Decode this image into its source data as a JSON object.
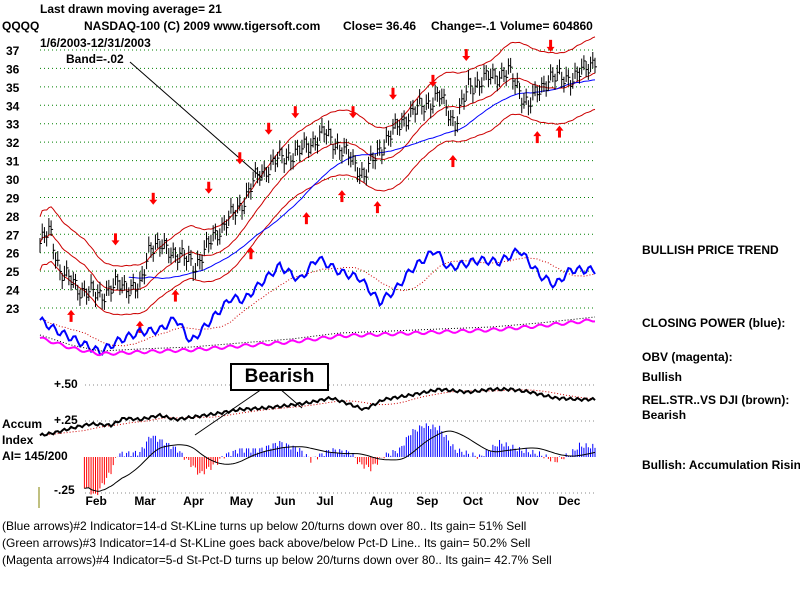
{
  "header": {
    "ma_line": "Last drawn moving average= 21",
    "symbol": "QQQQ",
    "title": "NASDAQ-100  (C) 2009 www.tigersoft.com",
    "close": "Close=  36.46",
    "change": "Change=-.1",
    "volume": "Volume= 604860",
    "date_range": "1/6/2003-12/31/2003",
    "band": "Band=-.02"
  },
  "right_labels": {
    "price_trend": "BULLISH PRICE TREND",
    "closing_power": "CLOSING POWER (blue):",
    "obv": "OBV (magenta):",
    "obv_status": "Bullish",
    "relstr": "REL.STR..VS DJI (brown):",
    "relstr_status": "Bearish",
    "accum": "Bullish: Accumulation Rising"
  },
  "accum_labels": {
    "p50": "+.50",
    "p25": "+.25",
    "m25": "-.25",
    "accum": "Accum",
    "index": "Index",
    "ai": "AI= 145/200"
  },
  "callout": "Bearish",
  "footer": [
    "(Blue arrows)#2 Indicator=14-d St-KLine turns up below 20/turns down over 80.. Its gain= 51% Sell",
    "(Green arrows)#3 Indicator=14-d St-KLine goes back above/below Pct-D Line.. Its gain= 50.2% Sell",
    "(Magenta arrows)#4 Indicator=5-d St-Pct-D turns up below 20/turns down over 80.. Its gain= 42.7% Sell"
  ],
  "chart_data": {
    "type": "line",
    "title": "NASDAQ-100 QQQQ 2003",
    "x_unit": "trading day",
    "x_range": [
      0,
      250
    ],
    "months": [
      {
        "label": "Feb",
        "day": 25
      },
      {
        "label": "Mar",
        "day": 47
      },
      {
        "label": "Apr",
        "day": 69
      },
      {
        "label": "May",
        "day": 90
      },
      {
        "label": "Jun",
        "day": 110
      },
      {
        "label": "Jul",
        "day": 129
      },
      {
        "label": "Aug",
        "day": 153
      },
      {
        "label": "Sep",
        "day": 174
      },
      {
        "label": "Oct",
        "day": 195
      },
      {
        "label": "Nov",
        "day": 219
      },
      {
        "label": "Dec",
        "day": 238
      }
    ],
    "price_axis": {
      "min": 23,
      "max": 37,
      "ticks": [
        23,
        24,
        25,
        26,
        27,
        28,
        29,
        30,
        31,
        32,
        33,
        34,
        35,
        36,
        37
      ]
    },
    "price_close": [
      [
        0,
        26.5
      ],
      [
        4.5,
        27.2
      ],
      [
        9,
        25
      ],
      [
        18,
        24
      ],
      [
        27,
        23.7
      ],
      [
        36,
        24.3
      ],
      [
        45,
        24
      ],
      [
        49.5,
        26.5
      ],
      [
        61,
        26
      ],
      [
        70,
        25.3
      ],
      [
        79,
        27
      ],
      [
        90,
        28.5
      ],
      [
        97,
        30
      ],
      [
        106,
        31
      ],
      [
        117,
        31.5
      ],
      [
        128,
        32.5
      ],
      [
        137,
        31.5
      ],
      [
        146,
        30.2
      ],
      [
        155,
        32
      ],
      [
        166,
        33.5
      ],
      [
        180,
        34.5
      ],
      [
        187,
        33
      ],
      [
        193,
        35
      ],
      [
        202,
        35.5
      ],
      [
        211,
        35.8
      ],
      [
        220,
        34
      ],
      [
        229,
        35.5
      ],
      [
        241,
        35.5
      ],
      [
        250,
        36.5
      ]
    ],
    "moving_average_days": 21,
    "sell_arrows": [
      [
        34,
        26.4
      ],
      [
        51,
        28.6
      ],
      [
        76,
        29.2
      ],
      [
        90,
        30.8
      ],
      [
        103,
        32.4
      ],
      [
        115,
        33.3
      ],
      [
        141,
        33.3
      ],
      [
        159,
        34.3
      ],
      [
        177,
        35.0
      ],
      [
        192,
        36.4
      ],
      [
        230,
        36.9
      ]
    ],
    "buy_arrows": [
      [
        14,
        22.9
      ],
      [
        45,
        22.3
      ],
      [
        61,
        24.0
      ],
      [
        95,
        26.3
      ],
      [
        120,
        28.2
      ],
      [
        136,
        29.4
      ],
      [
        152,
        28.8
      ],
      [
        186,
        31.3
      ],
      [
        224,
        32.6
      ],
      [
        234,
        32.9
      ]
    ],
    "closing_power": [
      [
        0,
        40
      ],
      [
        7,
        30
      ],
      [
        16,
        20
      ],
      [
        27,
        8
      ],
      [
        36,
        20
      ],
      [
        45,
        28
      ],
      [
        54,
        30
      ],
      [
        61,
        42
      ],
      [
        68,
        18
      ],
      [
        77,
        40
      ],
      [
        86,
        62
      ],
      [
        92,
        60
      ],
      [
        100,
        78
      ],
      [
        108,
        94
      ],
      [
        117,
        80
      ],
      [
        125,
        102
      ],
      [
        135,
        88
      ],
      [
        144,
        82
      ],
      [
        153,
        58
      ],
      [
        160,
        70
      ],
      [
        167,
        90
      ],
      [
        178,
        110
      ],
      [
        184,
        92
      ],
      [
        198,
        100
      ],
      [
        207,
        98
      ],
      [
        216,
        110
      ],
      [
        225,
        85
      ],
      [
        232,
        75
      ],
      [
        239,
        90
      ],
      [
        250,
        90
      ]
    ],
    "obv": [
      [
        0,
        22
      ],
      [
        14,
        12
      ],
      [
        27,
        6
      ],
      [
        45,
        8
      ],
      [
        68,
        10
      ],
      [
        90,
        14
      ],
      [
        113,
        18
      ],
      [
        135,
        24
      ],
      [
        158,
        26
      ],
      [
        180,
        28
      ],
      [
        203,
        30
      ],
      [
        225,
        34
      ],
      [
        250,
        40
      ]
    ],
    "accum_axis": {
      "min": -0.25,
      "max": 0.5,
      "ticks": [
        -0.25,
        0.25,
        0.5
      ]
    },
    "rel_strength": [
      [
        0,
        0.15
      ],
      [
        7,
        0.17
      ],
      [
        14,
        0.2
      ],
      [
        23,
        0.23
      ],
      [
        32,
        0.22
      ],
      [
        38,
        0.27
      ],
      [
        45,
        0.26
      ],
      [
        54,
        0.29
      ],
      [
        61,
        0.26
      ],
      [
        70,
        0.28
      ],
      [
        79,
        0.3
      ],
      [
        90,
        0.33
      ],
      [
        101,
        0.34
      ],
      [
        113,
        0.36
      ],
      [
        122,
        0.38
      ],
      [
        131,
        0.41
      ],
      [
        137,
        0.38
      ],
      [
        146,
        0.33
      ],
      [
        155,
        0.4
      ],
      [
        167,
        0.43
      ],
      [
        180,
        0.47
      ],
      [
        193,
        0.45
      ],
      [
        203,
        0.47
      ],
      [
        212,
        0.47
      ],
      [
        221,
        0.45
      ],
      [
        232,
        0.41
      ],
      [
        243,
        0.4
      ],
      [
        250,
        0.4
      ]
    ],
    "accum_index": [
      [
        20,
        -0.2
      ],
      [
        25,
        -0.27
      ],
      [
        32,
        -0.1
      ],
      [
        35,
        0.02
      ],
      [
        45,
        0.03
      ],
      [
        50,
        0.15
      ],
      [
        56,
        0.1
      ],
      [
        62,
        0.05
      ],
      [
        68,
        -0.05
      ],
      [
        72,
        -0.12
      ],
      [
        79,
        -0.05
      ],
      [
        83,
        0.01
      ],
      [
        90,
        0.05
      ],
      [
        99,
        0.05
      ],
      [
        108,
        0.1
      ],
      [
        117,
        0.05
      ],
      [
        122,
        -0.02
      ],
      [
        131,
        0.05
      ],
      [
        140,
        0.03
      ],
      [
        144,
        -0.05
      ],
      [
        149,
        -0.08
      ],
      [
        155,
        0.01
      ],
      [
        162,
        0.05
      ],
      [
        167,
        0.17
      ],
      [
        173,
        0.22
      ],
      [
        180,
        0.2
      ],
      [
        187,
        0.05
      ],
      [
        198,
        0
      ],
      [
        207,
        0.1
      ],
      [
        216,
        0.05
      ],
      [
        225,
        0.02
      ],
      [
        232,
        -0.03
      ],
      [
        239,
        0.02
      ],
      [
        243,
        0.08
      ],
      [
        250,
        0.07
      ]
    ],
    "colors": {
      "bars": "#000000",
      "bands": "#cc0000",
      "ma_blue": "#0000ff",
      "closing_power": "#0000ff",
      "obv": "#ff00ff",
      "arrows": "#ff0000",
      "accum_pos": "#0000ff",
      "accum_neg": "#ff0000",
      "grid": "#008000"
    }
  }
}
